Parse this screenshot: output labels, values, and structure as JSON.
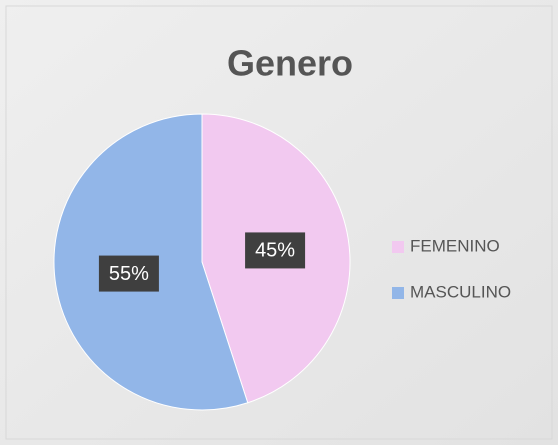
{
  "chart_data": {
    "type": "pie",
    "title": "Genero",
    "categories": [
      "FEMENINO",
      "MASCULINO"
    ],
    "values": [
      45,
      55
    ],
    "value_labels": [
      "45%",
      "55%"
    ],
    "colors": [
      "#f2c9f0",
      "#92b6e8"
    ],
    "legend": "right"
  }
}
